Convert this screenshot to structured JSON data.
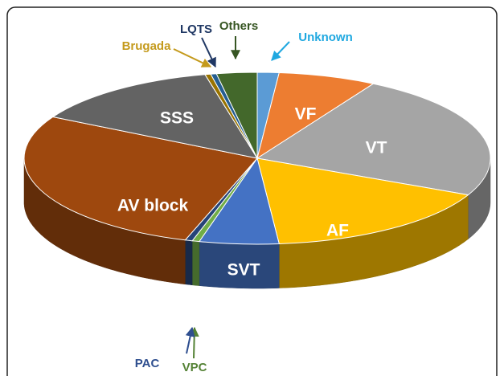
{
  "chart_data": {
    "type": "pie3d",
    "categories": [
      "Unknown",
      "VF",
      "VT",
      "AF",
      "SVT",
      "VPC",
      "PAC",
      "AV block",
      "SSS",
      "Brugada",
      "LQTS",
      "Others"
    ],
    "values": [
      1.5,
      6.8,
      23.7,
      16.5,
      5.5,
      0.5,
      0.5,
      28,
      13.4,
      0.4,
      0.4,
      2.8
    ],
    "colors": [
      "#5b9bd5",
      "#ed7d31",
      "#a5a5a5",
      "#ffc000",
      "#4472c4",
      "#70ad47",
      "#264478",
      "#9e480e",
      "#636363",
      "#997300",
      "#255e91",
      "#43682b"
    ]
  }
}
